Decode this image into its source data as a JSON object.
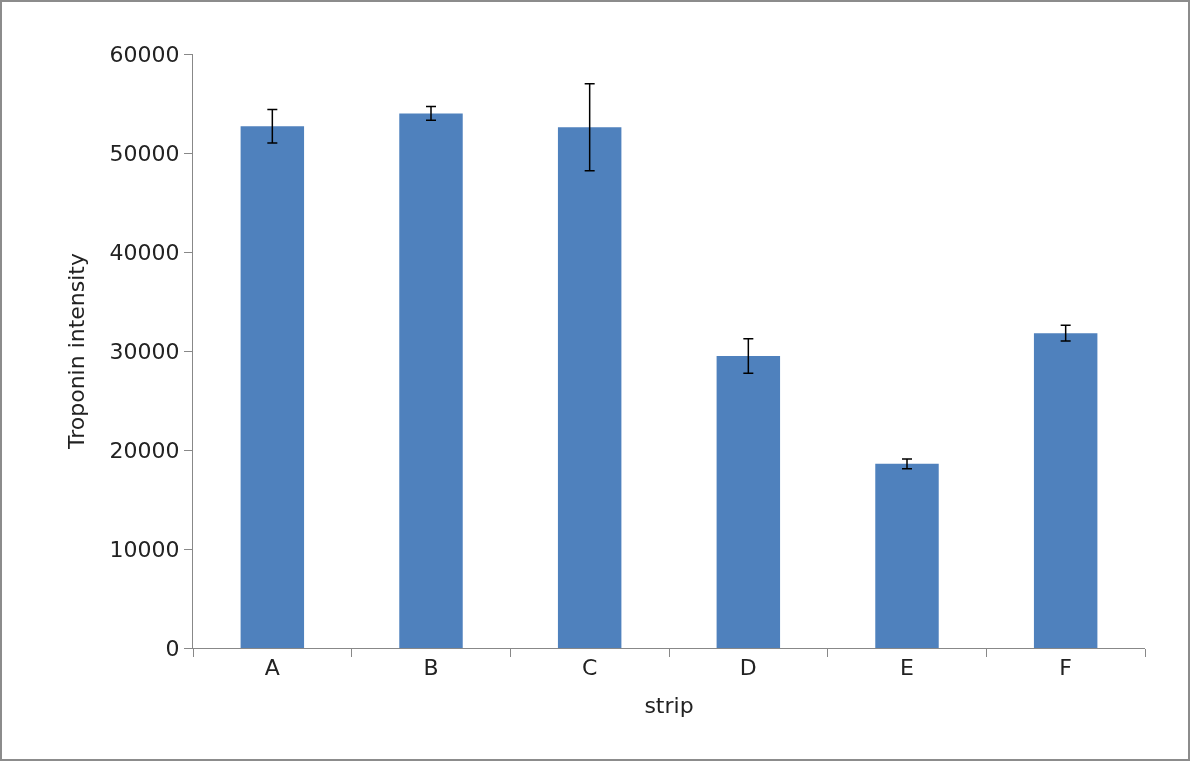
{
  "chart_data": {
    "type": "bar",
    "xlabel": "strip",
    "ylabel": "Troponin intensity",
    "categories": [
      "A",
      "B",
      "C",
      "D",
      "E",
      "F"
    ],
    "values": [
      52700,
      54000,
      52600,
      29500,
      18600,
      31800
    ],
    "errors": [
      1700,
      700,
      4400,
      1750,
      500,
      800
    ],
    "color": "#4f81bd",
    "ylim": [
      0,
      60000
    ],
    "yticks": [
      0,
      10000,
      20000,
      30000,
      40000,
      50000,
      60000
    ],
    "grid": false,
    "legend": false
  }
}
